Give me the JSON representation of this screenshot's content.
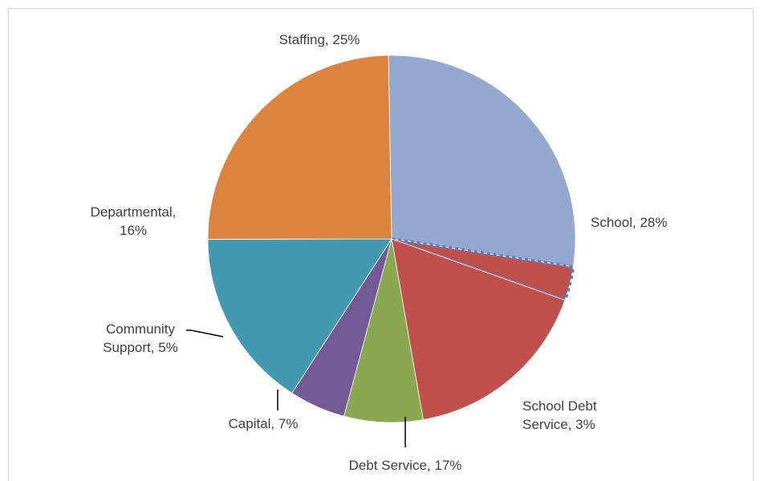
{
  "chart_data": {
    "type": "pie",
    "title": "",
    "slices": [
      {
        "name": "School",
        "value": 28,
        "color": "#95a9d0",
        "label_lines": [
          "School, 28%"
        ]
      },
      {
        "name": "School Debt Service",
        "value": 3,
        "color": "#c0504d",
        "pattern": "dotted-border",
        "label_lines": [
          "School Debt",
          "Service, 3%"
        ]
      },
      {
        "name": "Debt Service",
        "value": 17,
        "color": "#c0504d",
        "label_lines": [
          "Debt Service, 17%"
        ]
      },
      {
        "name": "Capital",
        "value": 7,
        "color": "#8aa84f",
        "label_lines": [
          "Capital, 7%"
        ]
      },
      {
        "name": "Community Support",
        "value": 5,
        "color": "#735a94",
        "label_lines": [
          "Community",
          "Support, 5%"
        ]
      },
      {
        "name": "Departmental",
        "value": 16,
        "color": "#4299b0",
        "label_lines": [
          "Departmental,",
          "16%"
        ]
      },
      {
        "name": "Staffing",
        "value": 25,
        "color": "#dc843e",
        "label_lines": [
          "Staffing, 25%"
        ]
      }
    ],
    "legend": "none"
  }
}
